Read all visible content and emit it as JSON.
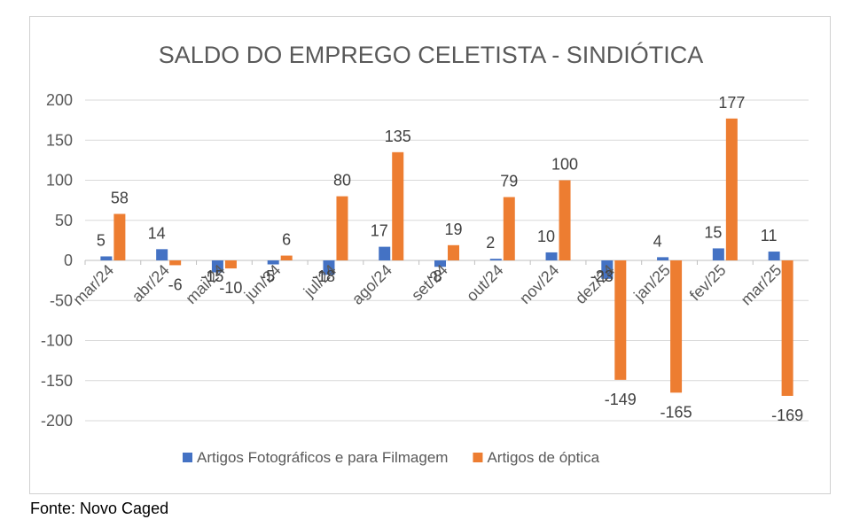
{
  "chart_data": {
    "type": "bar",
    "title": "SALDO DO EMPREGO CELETISTA - SINDIÓTICA",
    "categories": [
      "mar/24",
      "abr/24",
      "mai/24",
      "jun/24",
      "jul/24",
      "ago/24",
      "set/24",
      "out/24",
      "nov/24",
      "dez/24",
      "jan/25",
      "fev/25",
      "mar/25"
    ],
    "series": [
      {
        "name": "Artigos Fotográficos e para Filmagem",
        "color": "#4472C4",
        "values": [
          5,
          14,
          -15,
          -5,
          -18,
          17,
          -8,
          2,
          10,
          -23,
          4,
          15,
          11
        ]
      },
      {
        "name": "Artigos de óptica",
        "color": "#ED7D31",
        "values": [
          58,
          -6,
          -10,
          6,
          80,
          135,
          19,
          79,
          100,
          -149,
          -165,
          177,
          -169
        ]
      }
    ],
    "yticks": [
      200,
      150,
      100,
      50,
      0,
      -50,
      -100,
      -150,
      -200
    ],
    "ylim": [
      -200,
      200
    ],
    "grid": true,
    "legend_position": "bottom"
  },
  "source_note": "Fonte: Novo Caged"
}
